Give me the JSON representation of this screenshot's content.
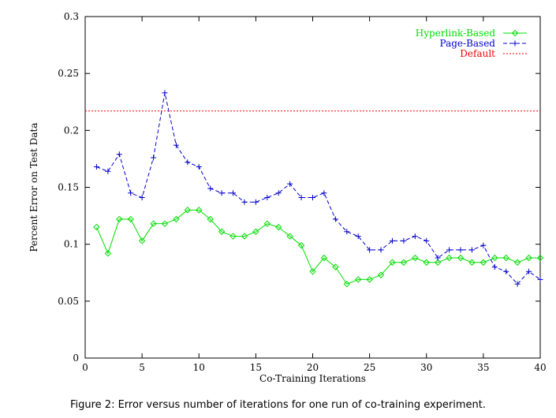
{
  "caption": "Figure 2: Error versus number of iterations for one run of co-training experiment.",
  "chart_data": {
    "type": "line",
    "title": "",
    "xlabel": "Co-Training Iterations",
    "ylabel": "Percent Error on Test Data",
    "xlim": [
      0,
      40
    ],
    "ylim": [
      0,
      0.3
    ],
    "xticks": [
      0,
      5,
      10,
      15,
      20,
      25,
      30,
      35,
      40
    ],
    "yticks": [
      0,
      0.05,
      0.1,
      0.15,
      0.2,
      0.25,
      0.3
    ],
    "xtick_labels": [
      "0",
      "5",
      "10",
      "15",
      "20",
      "25",
      "30",
      "35",
      "40"
    ],
    "ytick_labels": [
      "0",
      "0.05",
      "0.1",
      "0.15",
      "0.2",
      "0.25",
      "0.3"
    ],
    "grid": false,
    "legend_position": "top-right",
    "x": [
      1,
      2,
      3,
      4,
      5,
      6,
      7,
      8,
      9,
      10,
      11,
      12,
      13,
      14,
      15,
      16,
      17,
      18,
      19,
      20,
      21,
      22,
      23,
      24,
      25,
      26,
      27,
      28,
      29,
      30,
      31,
      32,
      33,
      34,
      35,
      36,
      37,
      38,
      39,
      40
    ],
    "series": [
      {
        "name": "Hyperlink-Based",
        "color": "#00dd00",
        "style": "solid",
        "marker": "diamond",
        "values": [
          0.115,
          0.092,
          0.122,
          0.122,
          0.103,
          0.118,
          0.118,
          0.122,
          0.13,
          0.13,
          0.122,
          0.111,
          0.107,
          0.107,
          0.111,
          0.118,
          0.115,
          0.107,
          0.099,
          0.076,
          0.088,
          0.08,
          0.065,
          0.069,
          0.069,
          0.073,
          0.084,
          0.084,
          0.088,
          0.084,
          0.084,
          0.088,
          0.088,
          0.084,
          0.084,
          0.088,
          0.088,
          0.084,
          0.088,
          0.088
        ]
      },
      {
        "name": "Page-Based",
        "color": "#0000cc",
        "style": "dashed",
        "marker": "plus",
        "values": [
          0.168,
          0.164,
          0.179,
          0.145,
          0.141,
          0.176,
          0.233,
          0.187,
          0.172,
          0.168,
          0.149,
          0.145,
          0.145,
          0.137,
          0.137,
          0.141,
          0.145,
          0.153,
          0.141,
          0.141,
          0.145,
          0.122,
          0.111,
          0.107,
          0.095,
          0.095,
          0.103,
          0.103,
          0.107,
          0.103,
          0.088,
          0.095,
          0.095,
          0.095,
          0.099,
          0.08,
          0.076,
          0.065,
          0.076,
          0.069
        ]
      },
      {
        "name": "Default",
        "color": "#ee0000",
        "style": "dotted",
        "marker": "none",
        "constant": 0.217
      }
    ]
  }
}
